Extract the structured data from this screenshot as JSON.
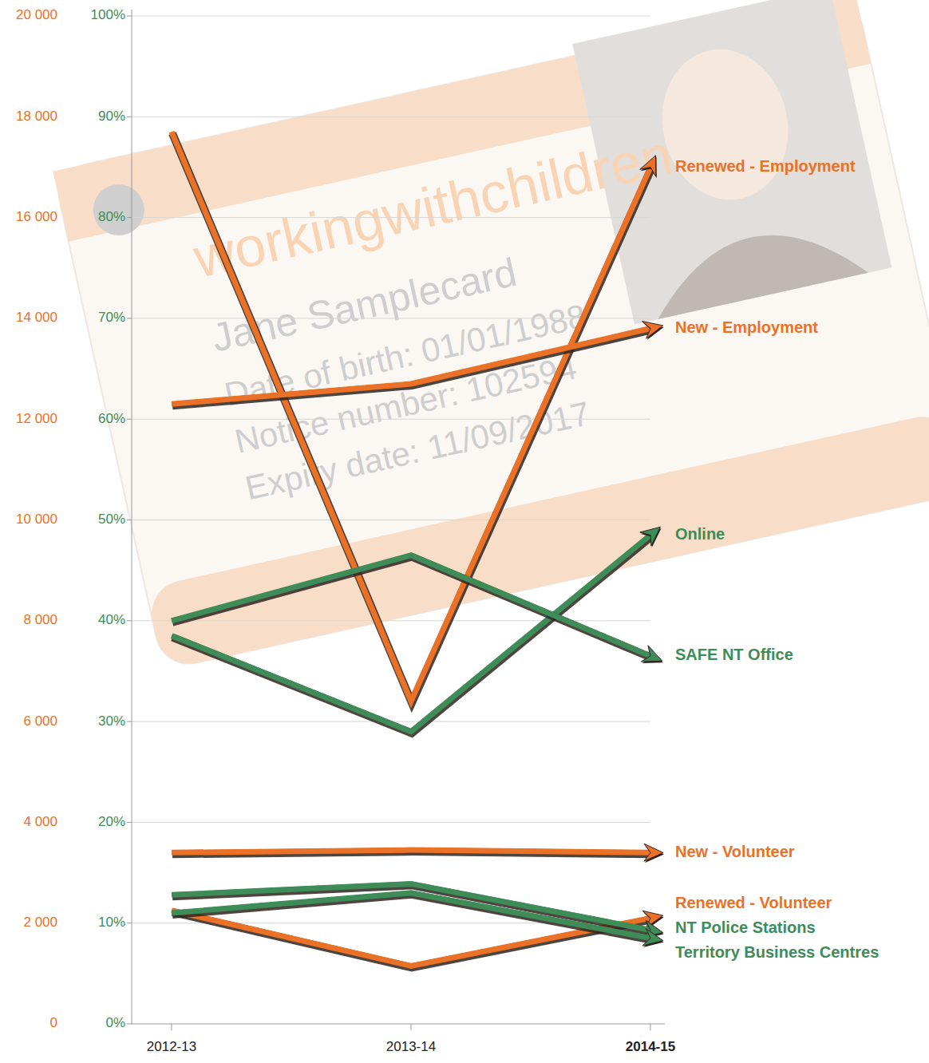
{
  "chart_data": {
    "type": "line",
    "categories": [
      "2012-13",
      "2013-14",
      "2014-15"
    ],
    "ylim": [
      0,
      20000
    ],
    "yticks": [
      0,
      {
        "value": 2000,
        "label": "2 000"
      },
      {
        "value": 4000,
        "label": "4 000"
      },
      {
        "value": 6000,
        "label": "6 000"
      },
      {
        "value": 8000,
        "label": "8 000"
      },
      {
        "value": 10000,
        "label": "10 000"
      },
      {
        "value": 12000,
        "label": "12 000"
      },
      {
        "value": 14000,
        "label": "14 000"
      },
      {
        "value": 16000,
        "label": "16 000"
      },
      {
        "value": 18000,
        "label": "18 000"
      },
      {
        "value": 20000,
        "label": "20 000"
      }
    ],
    "y2lim": [
      0,
      100
    ],
    "y2ticks": [
      {
        "value": 0,
        "label": "0%"
      },
      {
        "value": 10,
        "label": "10%"
      },
      {
        "value": 20,
        "label": "20%"
      },
      {
        "value": 30,
        "label": "30%"
      },
      {
        "value": 40,
        "label": "40%"
      },
      {
        "value": 50,
        "label": "50%"
      },
      {
        "value": 60,
        "label": "60%"
      },
      {
        "value": 70,
        "label": "70%"
      },
      {
        "value": 80,
        "label": "80%"
      },
      {
        "value": 90,
        "label": "90%"
      },
      {
        "value": 100,
        "label": "100%"
      }
    ],
    "grid": true,
    "marker": "arrow",
    "annotations": [
      "workingwithchildren",
      "Jane Samplecard",
      "Date of birth: 01/01/1988",
      "Notice number: 102594",
      "Expiry date: 11/09/2017"
    ],
    "series": [
      {
        "name": "Renewed - Employment",
        "color": "#ea7125",
        "values": [
          17700,
          6400,
          17000
        ]
      },
      {
        "name": "New - Employment",
        "color": "#ea7125",
        "values": [
          12300,
          12700,
          13800
        ]
      },
      {
        "name": "Online",
        "color": "#3e8c58",
        "values": [
          38.5,
          29,
          48.5
        ],
        "axis": "y2"
      },
      {
        "name": "SAFE NT Office",
        "color": "#3e8c58",
        "values": [
          40,
          46.5,
          36.5
        ],
        "axis": "y2"
      },
      {
        "name": "New - Volunteer",
        "color": "#ea7125",
        "values": [
          3400,
          3450,
          3400
        ]
      },
      {
        "name": "Renewed - Volunteer",
        "color": "#ea7125",
        "values": [
          2250,
          1150,
          2100
        ]
      },
      {
        "name": "NT Police Stations",
        "color": "#3e8c58",
        "values": [
          12.8,
          13.9,
          9.3
        ],
        "axis": "y2"
      },
      {
        "name": "Territory Business Centres",
        "color": "#3e8c58",
        "values": [
          11,
          13,
          8.5
        ],
        "axis": "y2"
      }
    ]
  }
}
